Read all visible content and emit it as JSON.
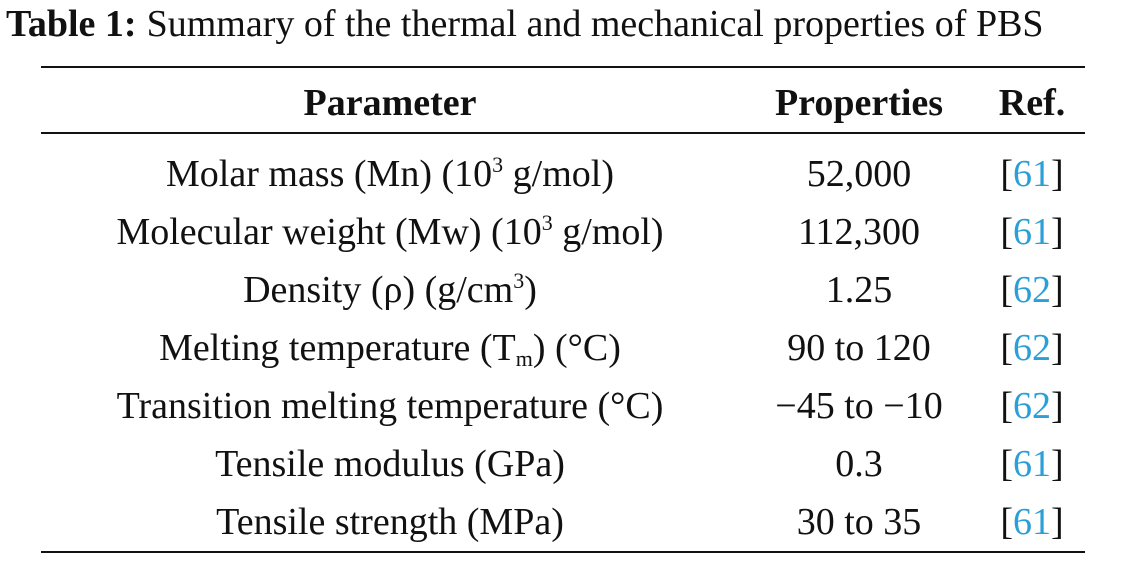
{
  "caption": {
    "label": "Table 1:",
    "text": "Summary of the thermal and mechanical properties of PBS"
  },
  "header": {
    "parameter": "Parameter",
    "properties": "Properties",
    "ref": "Ref."
  },
  "rows": [
    {
      "param_pre": "Molar mass (Mn) (10",
      "param_sup": "3",
      "param_post": " g/mol)",
      "value": "52,000",
      "ref": "61"
    },
    {
      "param_pre": "Molecular weight (Mw) (10",
      "param_sup": "3",
      "param_post": " g/mol)",
      "value": "112,300",
      "ref": "61"
    },
    {
      "param_pre": "Density (ρ) (g/cm",
      "param_sup": "3",
      "param_post": ")",
      "value": "1.25",
      "ref": "62"
    },
    {
      "param_pre": "Melting temperature (T",
      "param_sub": "m",
      "param_post": ") (°C)",
      "value": "90 to 120",
      "ref": "62"
    },
    {
      "param_pre": "Transition melting temperature (°C)",
      "value": "−45 to −10",
      "ref": "62"
    },
    {
      "param_pre": "Tensile modulus (GPa)",
      "value": "0.3",
      "ref": "61"
    },
    {
      "param_pre": "Tensile strength (MPa)",
      "value": "30 to 35",
      "ref": "61"
    }
  ],
  "colors": {
    "ref_link": "#2a9fd8",
    "text": "#111111"
  }
}
